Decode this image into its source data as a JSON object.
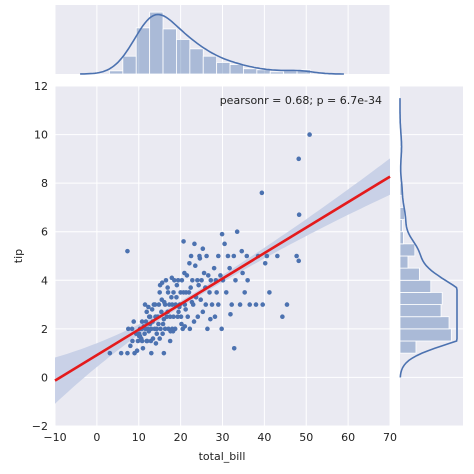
{
  "chart_data": {
    "type": "scatter",
    "subtype": "jointplot-regression",
    "xlabel": "total_bill",
    "ylabel": "tip",
    "xlim": [
      -10,
      70
    ],
    "ylim": [
      -2,
      12
    ],
    "xticks": [
      "−10",
      "0",
      "10",
      "20",
      "30",
      "40",
      "50",
      "60",
      "70"
    ],
    "yticks": [
      "−2",
      "0",
      "2",
      "4",
      "6",
      "8",
      "10",
      "12"
    ],
    "annotation": "pearsonr = 0.68; p = 6.7e-34",
    "colors": {
      "points": "#4c72b0",
      "regression_line": "#e41a1c",
      "confidence_band": "#c5cee6",
      "background": "#eaeaf2"
    },
    "regression": {
      "x0": -10,
      "y0": -0.13,
      "x1": 70,
      "y1": 8.27,
      "band_halfwidth_at_ends": [
        0.95,
        0.75
      ],
      "band_halfwidth_at_center": 0.12
    },
    "points": [
      [
        3.1,
        1.0
      ],
      [
        5.8,
        1.0
      ],
      [
        7.3,
        1.0
      ],
      [
        7.5,
        2.0
      ],
      [
        7.3,
        5.2
      ],
      [
        8.0,
        1.3
      ],
      [
        8.4,
        2.0
      ],
      [
        8.5,
        1.5
      ],
      [
        8.8,
        2.3
      ],
      [
        9.0,
        1.0
      ],
      [
        9.6,
        1.1
      ],
      [
        9.8,
        1.5
      ],
      [
        10.1,
        1.7
      ],
      [
        10.3,
        1.7
      ],
      [
        10.3,
        2.0
      ],
      [
        10.6,
        1.6
      ],
      [
        10.8,
        1.5
      ],
      [
        10.1,
        1.8
      ],
      [
        10.7,
        2.0
      ],
      [
        11.0,
        1.2
      ],
      [
        11.2,
        2.1
      ],
      [
        11.4,
        1.8
      ],
      [
        11.6,
        2.0
      ],
      [
        11.9,
        1.5
      ],
      [
        11.7,
        2.3
      ],
      [
        11.5,
        3.0
      ],
      [
        12.0,
        1.5
      ],
      [
        12.2,
        2.0
      ],
      [
        12.4,
        1.9
      ],
      [
        12.5,
        2.5
      ],
      [
        12.7,
        2.2
      ],
      [
        12.9,
        1.5
      ],
      [
        13.0,
        2.0
      ],
      [
        13.0,
        1.0
      ],
      [
        13.3,
        2.3
      ],
      [
        13.4,
        1.6
      ],
      [
        13.8,
        2.0
      ],
      [
        13.9,
        3.0
      ],
      [
        14.0,
        2.5
      ],
      [
        14.1,
        1.4
      ],
      [
        14.3,
        2.0
      ],
      [
        14.5,
        2.5
      ],
      [
        14.7,
        2.2
      ],
      [
        14.8,
        3.0
      ],
      [
        15.0,
        1.6
      ],
      [
        15.0,
        3.5
      ],
      [
        15.2,
        2.0
      ],
      [
        15.4,
        2.7
      ],
      [
        15.5,
        3.2
      ],
      [
        15.7,
        1.8
      ],
      [
        15.8,
        2.2
      ],
      [
        16.0,
        2.4
      ],
      [
        16.0,
        1.0
      ],
      [
        16.3,
        2.0
      ],
      [
        16.3,
        3.0
      ],
      [
        16.5,
        4.0
      ],
      [
        16.7,
        2.5
      ],
      [
        16.9,
        2.7
      ],
      [
        17.0,
        3.5
      ],
      [
        17.1,
        2.0
      ],
      [
        17.3,
        3.0
      ],
      [
        17.5,
        2.5
      ],
      [
        17.6,
        1.9
      ],
      [
        17.8,
        3.3
      ],
      [
        18.0,
        2.0
      ],
      [
        18.0,
        3.0
      ],
      [
        18.3,
        3.5
      ],
      [
        18.3,
        2.5
      ],
      [
        18.5,
        4.0
      ],
      [
        18.7,
        2.0
      ],
      [
        18.8,
        3.0
      ],
      [
        19.0,
        3.3
      ],
      [
        19.3,
        2.5
      ],
      [
        19.4,
        4.0
      ],
      [
        19.5,
        2.7
      ],
      [
        19.8,
        3.0
      ],
      [
        20.0,
        3.5
      ],
      [
        20.1,
        2.5
      ],
      [
        20.3,
        4.0
      ],
      [
        20.5,
        2.0
      ],
      [
        20.7,
        3.5
      ],
      [
        20.9,
        4.3
      ],
      [
        21.0,
        3.0
      ],
      [
        21.0,
        2.1
      ],
      [
        21.3,
        3.5
      ],
      [
        21.5,
        4.2
      ],
      [
        21.7,
        2.5
      ],
      [
        22.0,
        3.5
      ],
      [
        22.2,
        2.0
      ],
      [
        22.4,
        3.7
      ],
      [
        22.5,
        5.0
      ],
      [
        22.8,
        4.0
      ],
      [
        23.0,
        3.0
      ],
      [
        23.2,
        2.3
      ],
      [
        23.3,
        5.5
      ],
      [
        23.7,
        3.3
      ],
      [
        24.0,
        4.0
      ],
      [
        24.1,
        2.5
      ],
      [
        24.3,
        3.8
      ],
      [
        24.5,
        5.0
      ],
      [
        24.8,
        3.2
      ],
      [
        25.0,
        4.0
      ],
      [
        25.3,
        2.7
      ],
      [
        25.6,
        4.3
      ],
      [
        26.0,
        3.0
      ],
      [
        26.2,
        5.0
      ],
      [
        26.4,
        2.0
      ],
      [
        26.9,
        3.5
      ],
      [
        27.2,
        4.0
      ],
      [
        27.5,
        3.0
      ],
      [
        28.0,
        4.5
      ],
      [
        28.2,
        2.5
      ],
      [
        28.6,
        3.5
      ],
      [
        29.0,
        5.0
      ],
      [
        29.0,
        3.0
      ],
      [
        29.5,
        4.2
      ],
      [
        29.8,
        2.0
      ],
      [
        30.1,
        4.0
      ],
      [
        30.5,
        5.5
      ],
      [
        30.9,
        3.5
      ],
      [
        31.3,
        5.0
      ],
      [
        31.7,
        4.5
      ],
      [
        32.2,
        3.0
      ],
      [
        32.7,
        5.0
      ],
      [
        33.1,
        4.0
      ],
      [
        33.5,
        6.0
      ],
      [
        34.2,
        3.0
      ],
      [
        34.6,
        5.2
      ],
      [
        34.8,
        4.3
      ],
      [
        35.3,
        3.5
      ],
      [
        35.8,
        5.0
      ],
      [
        36.0,
        4.0
      ],
      [
        36.5,
        3.0
      ],
      [
        38.0,
        3.0
      ],
      [
        38.5,
        5.0
      ],
      [
        39.4,
        7.6
      ],
      [
        39.6,
        3.0
      ],
      [
        40.2,
        4.7
      ],
      [
        40.6,
        5.0
      ],
      [
        41.2,
        3.5
      ],
      [
        43.1,
        5.0
      ],
      [
        44.3,
        2.5
      ],
      [
        45.4,
        3.0
      ],
      [
        47.7,
        5.0
      ],
      [
        48.2,
        4.8
      ],
      [
        48.2,
        9.0
      ],
      [
        48.3,
        6.7
      ],
      [
        50.8,
        10.0
      ],
      [
        17.5,
        1.5
      ],
      [
        12.7,
        2.5
      ],
      [
        15.1,
        3.8
      ],
      [
        13.6,
        3.0
      ],
      [
        16.9,
        3.7
      ],
      [
        19.7,
        2.9
      ],
      [
        22.7,
        3.1
      ],
      [
        20.2,
        2.2
      ],
      [
        14.3,
        1.8
      ],
      [
        11.9,
        2.7
      ],
      [
        18.2,
        1.9
      ],
      [
        25.9,
        3.7
      ],
      [
        29.9,
        5.9
      ],
      [
        27.1,
        2.4
      ],
      [
        23.5,
        4.6
      ],
      [
        26.6,
        4.2
      ],
      [
        32.8,
        1.2
      ],
      [
        28.4,
        4.0
      ],
      [
        21.2,
        2.8
      ],
      [
        24.6,
        4.9
      ],
      [
        31.9,
        2.6
      ],
      [
        19.1,
        3.8
      ],
      [
        16.1,
        3.1
      ],
      [
        13.2,
        2.8
      ],
      [
        10.8,
        2.3
      ],
      [
        9.4,
        1.8
      ],
      [
        20.7,
        5.6
      ],
      [
        17.9,
        4.1
      ],
      [
        25.3,
        5.3
      ],
      [
        22.1,
        4.7
      ],
      [
        15.6,
        3.9
      ],
      [
        12.3,
        2.9
      ]
    ],
    "marginal_x": {
      "bin_edges": [
        3,
        6.2,
        9.4,
        12.6,
        15.8,
        19,
        22.2,
        25.4,
        28.6,
        31.8,
        35,
        38.2,
        41.4,
        44.6,
        47.8,
        51
      ],
      "counts": [
        3,
        17,
        44,
        59,
        43,
        33,
        24,
        17,
        11,
        9,
        5,
        4,
        2,
        3,
        4
      ]
    },
    "marginal_y": {
      "bin_edges": [
        1,
        1.5,
        2,
        2.5,
        3,
        3.5,
        4,
        4.5,
        5,
        5.5,
        6,
        6.5,
        7,
        7.5,
        8,
        8.5,
        9,
        9.5,
        10
      ],
      "counts": [
        14,
        45,
        43,
        36,
        37,
        27,
        17,
        7,
        13,
        3,
        2,
        4,
        0,
        2,
        0,
        0,
        1,
        1
      ]
    }
  }
}
